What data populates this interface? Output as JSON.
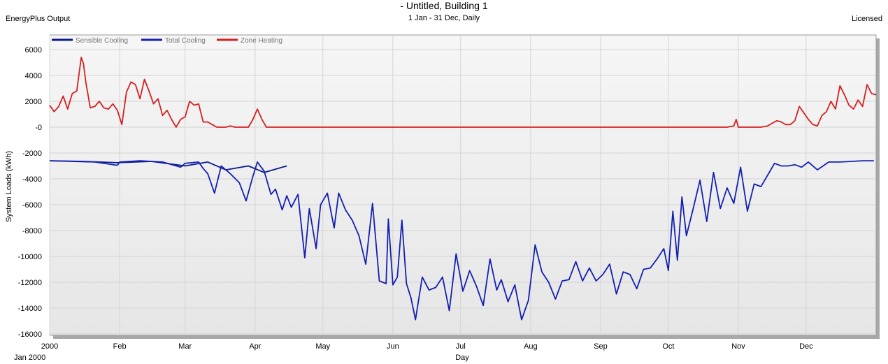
{
  "header": {
    "title": "- Untitled, Building 1",
    "subtitle": "1 Jan - 31 Dec, Daily",
    "app_name": "EnergyPlus Output",
    "license": "Licensed"
  },
  "chart_data": {
    "type": "line",
    "title": "- Untitled, Building 1",
    "subtitle": "1 Jan - 31 Dec, Daily",
    "xlabel": "Day",
    "ylabel": "System Loads (kWh)",
    "ylim": [
      -16000,
      7000
    ],
    "yticks": [
      6000,
      4000,
      2000,
      0,
      -2000,
      -4000,
      -6000,
      -8000,
      -10000,
      -12000,
      -14000,
      -16000
    ],
    "ytick_labels": [
      "6000",
      "4000",
      "2000",
      "-0",
      "-2000",
      "-4000",
      "-6000",
      "-8000",
      "-10000",
      "-12000",
      "-14000",
      "-16000"
    ],
    "xlim": [
      0,
      366
    ],
    "xticks": [
      0,
      31,
      60,
      91,
      121,
      152,
      182,
      213,
      244,
      274,
      305,
      335
    ],
    "xtick_labels": [
      "2000",
      "Feb",
      "Mar",
      "Apr",
      "May",
      "Jun",
      "Jul",
      "Aug",
      "Sep",
      "Oct",
      "Nov",
      "Dec"
    ],
    "x_start_label": "Jan  2000",
    "grid": true,
    "legend_position": "top-left",
    "series": [
      {
        "name": "Sensible Cooling",
        "color": "#0a1a8a",
        "x": [
          0,
          15,
          30,
          45,
          60,
          70,
          78,
          88,
          95,
          105
        ],
        "values": [
          -2600,
          -2650,
          -2750,
          -2650,
          -3000,
          -2700,
          -3300,
          -3000,
          -3500,
          -3000
        ]
      },
      {
        "name": "Total Cooling",
        "color": "#1420b0",
        "x": [
          0,
          10,
          20,
          30,
          31,
          40,
          50,
          58,
          60,
          66,
          68,
          70,
          73,
          76,
          80,
          84,
          87,
          90,
          92,
          95,
          98,
          100,
          103,
          105,
          107,
          110,
          113,
          115,
          118,
          120,
          123,
          126,
          128,
          131,
          134,
          137,
          140,
          143,
          146,
          149,
          150,
          152,
          154,
          156,
          158,
          160,
          162,
          165,
          168,
          171,
          174,
          177,
          180,
          183,
          186,
          189,
          192,
          195,
          198,
          200,
          203,
          206,
          209,
          212,
          215,
          218,
          221,
          224,
          227,
          230,
          233,
          236,
          239,
          242,
          245,
          248,
          251,
          254,
          257,
          260,
          263,
          266,
          269,
          272,
          274,
          276,
          278,
          280,
          282,
          285,
          288,
          291,
          294,
          297,
          300,
          303,
          306,
          309,
          312,
          315,
          318,
          321,
          324,
          327,
          330,
          333,
          336,
          340,
          345,
          350,
          355,
          360,
          365
        ],
        "values": [
          -2600,
          -2650,
          -2700,
          -2950,
          -2700,
          -2600,
          -2700,
          -3100,
          -2800,
          -2700,
          -3200,
          -3600,
          -5100,
          -3000,
          -3600,
          -4300,
          -5700,
          -3800,
          -2700,
          -3400,
          -5200,
          -4800,
          -6400,
          -5300,
          -6200,
          -5200,
          -10100,
          -6300,
          -9400,
          -6000,
          -5100,
          -7800,
          -5100,
          -6400,
          -7200,
          -8400,
          -10600,
          -5900,
          -11900,
          -12100,
          -7100,
          -12200,
          -11600,
          -7200,
          -12100,
          -13200,
          -14900,
          -11600,
          -12600,
          -12400,
          -11600,
          -14200,
          -9800,
          -12700,
          -11100,
          -12300,
          -13800,
          -10200,
          -12600,
          -11800,
          -13500,
          -12200,
          -14900,
          -13400,
          -9100,
          -11200,
          -12000,
          -13300,
          -11900,
          -11800,
          -10400,
          -11900,
          -10900,
          -11900,
          -11400,
          -10600,
          -12900,
          -11200,
          -11400,
          -12500,
          -11000,
          -10900,
          -10200,
          -9400,
          -11100,
          -6500,
          -10300,
          -5400,
          -8400,
          -6300,
          -4100,
          -7300,
          -3500,
          -6300,
          -4700,
          -5900,
          -3100,
          -6500,
          -4400,
          -4600,
          -3700,
          -2800,
          -3000,
          -3000,
          -2900,
          -3100,
          -2700,
          -3300,
          -2700,
          -2700,
          -2650,
          -2600,
          -2600
        ]
      },
      {
        "name": "Zone Heating",
        "color": "#d62020",
        "x": [
          0,
          2,
          4,
          6,
          8,
          10,
          12,
          14,
          15,
          16,
          18,
          20,
          22,
          24,
          26,
          28,
          30,
          32,
          34,
          36,
          38,
          40,
          42,
          44,
          46,
          48,
          50,
          52,
          54,
          56,
          58,
          60,
          62,
          64,
          66,
          68,
          70,
          72,
          74,
          76,
          78,
          80,
          82,
          84,
          86,
          88,
          90,
          92,
          94,
          96,
          100,
          150,
          200,
          250,
          300,
          303,
          304,
          305,
          310,
          315,
          318,
          320,
          322,
          324,
          326,
          328,
          330,
          332,
          334,
          336,
          338,
          340,
          342,
          344,
          346,
          348,
          350,
          352,
          354,
          356,
          358,
          360,
          362,
          364,
          366
        ],
        "values": [
          1700,
          1200,
          1600,
          2400,
          1400,
          2600,
          2800,
          5400,
          4900,
          3500,
          1500,
          1600,
          2000,
          1500,
          1400,
          1800,
          1300,
          200,
          2700,
          3500,
          3300,
          2200,
          3700,
          2800,
          1800,
          2200,
          900,
          1300,
          600,
          0,
          600,
          800,
          2000,
          1700,
          1800,
          400,
          400,
          200,
          0,
          0,
          0,
          100,
          0,
          0,
          0,
          0,
          600,
          1400,
          600,
          0,
          0,
          0,
          0,
          0,
          0,
          100,
          600,
          0,
          0,
          0,
          100,
          300,
          500,
          400,
          200,
          200,
          500,
          1600,
          1100,
          600,
          200,
          100,
          900,
          1200,
          2000,
          1400,
          3200,
          2500,
          1700,
          1400,
          2100,
          1600,
          3300,
          2600,
          2500
        ]
      }
    ]
  }
}
